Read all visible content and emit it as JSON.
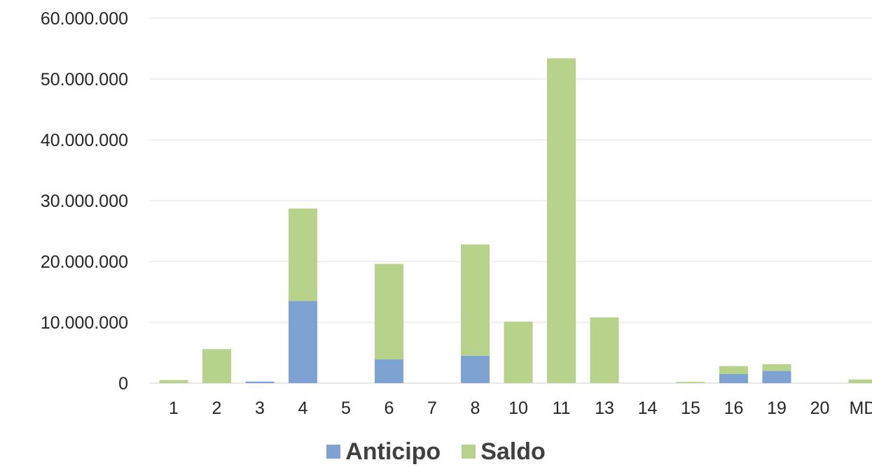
{
  "chart_data": {
    "type": "bar",
    "stacked": true,
    "categories": [
      "1",
      "2",
      "3",
      "4",
      "5",
      "6",
      "7",
      "8",
      "10",
      "11",
      "13",
      "14",
      "15",
      "16",
      "19",
      "20",
      "MD"
    ],
    "series": [
      {
        "name": "Anticipo",
        "color": "#7ea3d2",
        "values": [
          0,
          0,
          250000,
          13500000,
          0,
          3900000,
          0,
          4500000,
          0,
          0,
          0,
          0,
          0,
          1500000,
          2000000,
          0,
          0
        ]
      },
      {
        "name": "Saldo",
        "color": "#b7d28b",
        "values": [
          500000,
          5600000,
          0,
          15200000,
          0,
          15700000,
          0,
          18300000,
          10100000,
          53400000,
          10800000,
          0,
          200000,
          1300000,
          1100000,
          0,
          600000
        ]
      }
    ],
    "ylim": [
      0,
      60000000
    ],
    "yticks": [
      0,
      10000000,
      20000000,
      30000000,
      40000000,
      50000000,
      60000000
    ],
    "ytick_labels": [
      "0",
      "10.000.000",
      "20.000.000",
      "30.000.000",
      "40.000.000",
      "50.000.000",
      "60.000.000"
    ],
    "grid": true,
    "legend": "bottom",
    "title": "",
    "xlabel": "",
    "ylabel": ""
  }
}
